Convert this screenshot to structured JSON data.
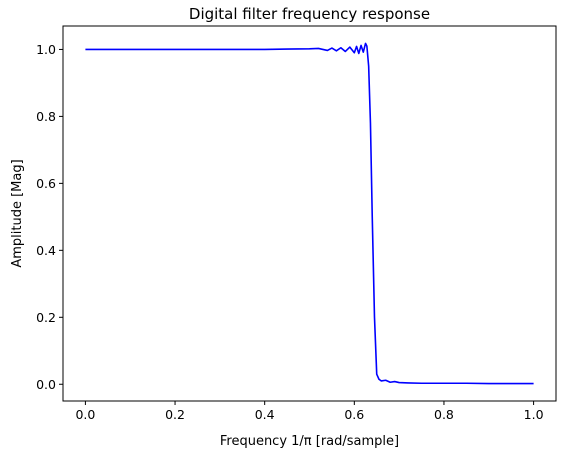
{
  "chart_data": {
    "type": "line",
    "title": "Digital filter frequency response",
    "xlabel": "Frequency 1/π [rad/sample]",
    "ylabel": "Amplitude [Mag]",
    "xlim": [
      -0.05,
      1.05
    ],
    "ylim": [
      -0.05,
      1.07
    ],
    "xticks": [
      0.0,
      0.2,
      0.4,
      0.6,
      0.8,
      1.0
    ],
    "xtick_labels": [
      "0.0",
      "0.2",
      "0.4",
      "0.6",
      "0.8",
      "1.0"
    ],
    "yticks": [
      0.0,
      0.2,
      0.4,
      0.6,
      0.8,
      1.0
    ],
    "ytick_labels": [
      "0.0",
      "0.2",
      "0.4",
      "0.6",
      "0.8",
      "1.0"
    ],
    "grid": false,
    "series": [
      {
        "color": "#0000ff",
        "x": [
          0.0,
          0.05,
          0.1,
          0.15,
          0.2,
          0.25,
          0.3,
          0.35,
          0.4,
          0.45,
          0.5,
          0.52,
          0.54,
          0.55,
          0.56,
          0.57,
          0.58,
          0.59,
          0.6,
          0.605,
          0.61,
          0.615,
          0.62,
          0.625,
          0.628,
          0.632,
          0.636,
          0.64,
          0.645,
          0.65,
          0.655,
          0.66,
          0.67,
          0.68,
          0.69,
          0.7,
          0.72,
          0.75,
          0.8,
          0.85,
          0.9,
          0.95,
          1.0
        ],
        "y": [
          1.0,
          1.0,
          1.0,
          1.0,
          1.0,
          1.0,
          1.0,
          1.0,
          1.0,
          1.001,
          1.002,
          1.003,
          0.997,
          1.004,
          0.996,
          1.005,
          0.994,
          1.007,
          0.99,
          1.009,
          0.988,
          1.012,
          0.992,
          1.018,
          1.01,
          0.95,
          0.78,
          0.5,
          0.2,
          0.03,
          0.015,
          0.01,
          0.012,
          0.006,
          0.008,
          0.005,
          0.004,
          0.003,
          0.003,
          0.003,
          0.002,
          0.002,
          0.002
        ]
      }
    ]
  }
}
